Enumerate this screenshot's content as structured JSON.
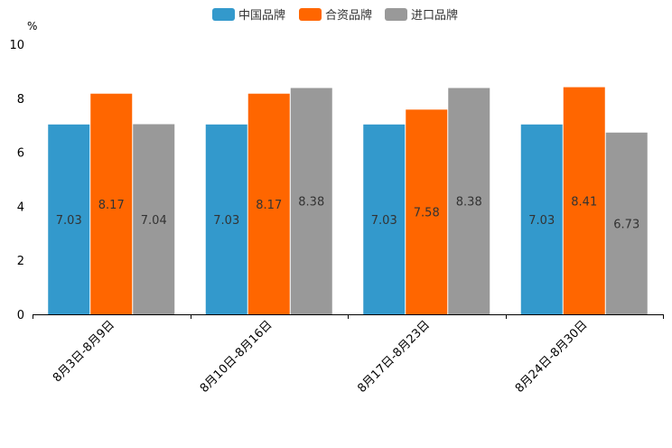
{
  "chart_data": {
    "type": "bar",
    "title": "",
    "y_unit": "%",
    "xlabel": "",
    "ylabel": "",
    "ylim": [
      0,
      10
    ],
    "yticks": [
      0,
      2,
      4,
      6,
      8,
      10
    ],
    "grid": false,
    "legend_position": "top-center",
    "categories": [
      "8月3日-8月9日",
      "8月10日-8月16日",
      "8月17日-8月23日",
      "8月24日-8月30日"
    ],
    "series": [
      {
        "name": "中国品牌",
        "color": "#3399CC",
        "values": [
          7.03,
          7.03,
          7.03,
          7.03
        ]
      },
      {
        "name": "合资品牌",
        "color": "#FF6600",
        "values": [
          8.17,
          8.17,
          7.58,
          8.41
        ]
      },
      {
        "name": "进口品牌",
        "color": "#999999",
        "values": [
          7.04,
          8.38,
          8.38,
          6.73
        ]
      }
    ]
  }
}
